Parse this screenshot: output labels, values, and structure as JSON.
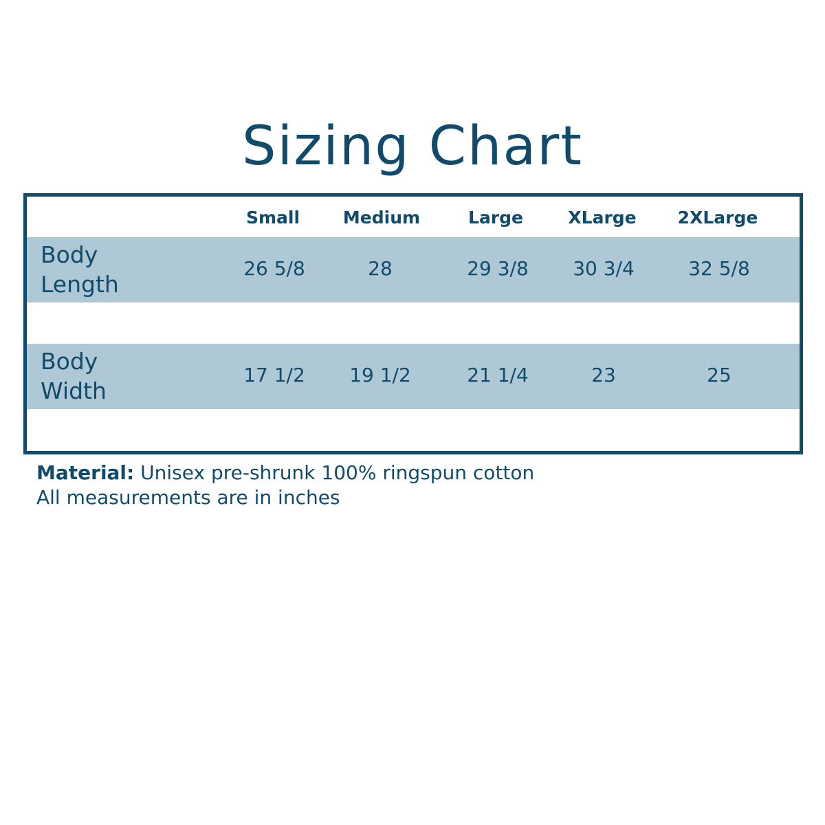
{
  "title": "Sizing Chart",
  "colors": {
    "primary": "#114b6b",
    "row_shade": "#aec8d5"
  },
  "table": {
    "columns": [
      "Small",
      "Medium",
      "Large",
      "XLarge",
      "2XLarge"
    ],
    "rows": [
      {
        "label_line1": "Body",
        "label_line2": "Length",
        "values": [
          "26 5/8",
          "28",
          "29 3/8",
          "30 3/4",
          "32 5/8"
        ]
      },
      {
        "label_line1": "Body",
        "label_line2": "Width",
        "values": [
          "17 1/2",
          "19 1/2",
          "21 1/4",
          "23",
          "25"
        ]
      }
    ]
  },
  "notes": {
    "material_label": "Material:",
    "material_value": " Unisex pre-shrunk 100% ringspun cotton",
    "units": "All measurements are in inches"
  }
}
